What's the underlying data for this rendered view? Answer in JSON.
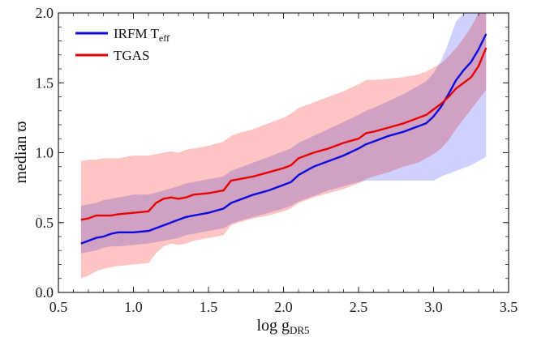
{
  "chart_data": {
    "type": "line",
    "title": "",
    "xlabel": "log g",
    "xlabel_sub": "DR5",
    "ylabel": "median ϖ",
    "xlim": [
      0.5,
      3.5
    ],
    "ylim": [
      0.0,
      2.0
    ],
    "xticks": [
      0.5,
      1.0,
      1.5,
      2.0,
      2.5,
      3.0,
      3.5
    ],
    "xtick_labels": [
      "0.5",
      "1.0",
      "1.5",
      "2.0",
      "2.5",
      "3.0",
      "3.5"
    ],
    "yticks": [
      0.0,
      0.5,
      1.0,
      1.5,
      2.0
    ],
    "ytick_labels": [
      "0.0",
      "0.5",
      "1.0",
      "1.5",
      "2.0"
    ],
    "grid": false,
    "legend_position": "top-left",
    "series": [
      {
        "name": "IRFM T",
        "name_sub": "eff",
        "color": "#0a0adc",
        "band_color": "#c9c9ff",
        "x": [
          0.65,
          0.7,
          0.75,
          0.8,
          0.85,
          0.9,
          1.0,
          1.1,
          1.2,
          1.3,
          1.35,
          1.4,
          1.5,
          1.6,
          1.65,
          1.7,
          1.8,
          1.9,
          2.0,
          2.05,
          2.1,
          2.2,
          2.3,
          2.4,
          2.5,
          2.55,
          2.6,
          2.7,
          2.8,
          2.9,
          2.95,
          3.0,
          3.05,
          3.1,
          3.15,
          3.2,
          3.25,
          3.3,
          3.35
        ],
        "values": [
          0.35,
          0.37,
          0.39,
          0.4,
          0.42,
          0.43,
          0.43,
          0.44,
          0.48,
          0.52,
          0.54,
          0.55,
          0.57,
          0.6,
          0.64,
          0.66,
          0.7,
          0.73,
          0.77,
          0.79,
          0.84,
          0.9,
          0.94,
          0.98,
          1.03,
          1.06,
          1.08,
          1.12,
          1.15,
          1.19,
          1.21,
          1.26,
          1.33,
          1.42,
          1.52,
          1.59,
          1.65,
          1.74,
          1.85
        ],
        "band_upper": [
          0.62,
          0.63,
          0.64,
          0.66,
          0.67,
          0.68,
          0.7,
          0.7,
          0.73,
          0.76,
          0.78,
          0.79,
          0.81,
          0.83,
          0.87,
          0.89,
          0.93,
          0.97,
          1.01,
          1.03,
          1.07,
          1.12,
          1.17,
          1.22,
          1.27,
          1.3,
          1.32,
          1.37,
          1.42,
          1.48,
          1.51,
          1.57,
          1.66,
          1.79,
          1.94,
          2.0,
          2.0,
          2.0,
          2.0
        ],
        "band_lower": [
          0.28,
          0.29,
          0.3,
          0.32,
          0.33,
          0.33,
          0.34,
          0.35,
          0.37,
          0.39,
          0.41,
          0.42,
          0.44,
          0.46,
          0.49,
          0.51,
          0.54,
          0.57,
          0.6,
          0.62,
          0.65,
          0.69,
          0.73,
          0.76,
          0.79,
          0.8,
          0.8,
          0.8,
          0.8,
          0.8,
          0.8,
          0.8,
          0.83,
          0.85,
          0.87,
          0.89,
          0.91,
          0.94,
          0.97
        ]
      },
      {
        "name": "TGAS",
        "color": "#e60000",
        "band_color": "#ffc4c4",
        "x": [
          0.65,
          0.7,
          0.75,
          0.8,
          0.85,
          0.9,
          1.0,
          1.1,
          1.15,
          1.2,
          1.25,
          1.3,
          1.35,
          1.4,
          1.5,
          1.6,
          1.65,
          1.7,
          1.8,
          1.9,
          2.0,
          2.05,
          2.1,
          2.2,
          2.3,
          2.4,
          2.5,
          2.55,
          2.6,
          2.7,
          2.8,
          2.9,
          2.95,
          3.0,
          3.05,
          3.1,
          3.15,
          3.2,
          3.25,
          3.3,
          3.35
        ],
        "values": [
          0.52,
          0.53,
          0.55,
          0.55,
          0.55,
          0.56,
          0.57,
          0.58,
          0.64,
          0.67,
          0.68,
          0.67,
          0.68,
          0.7,
          0.71,
          0.73,
          0.8,
          0.81,
          0.83,
          0.86,
          0.89,
          0.91,
          0.96,
          1.0,
          1.03,
          1.07,
          1.1,
          1.14,
          1.15,
          1.18,
          1.21,
          1.25,
          1.27,
          1.31,
          1.35,
          1.4,
          1.46,
          1.5,
          1.54,
          1.62,
          1.75
        ],
        "band_upper": [
          0.94,
          0.95,
          0.95,
          0.96,
          0.96,
          0.96,
          0.98,
          0.98,
          0.99,
          1.0,
          1.01,
          1.0,
          1.02,
          1.03,
          1.05,
          1.08,
          1.12,
          1.14,
          1.17,
          1.21,
          1.25,
          1.28,
          1.32,
          1.36,
          1.4,
          1.44,
          1.49,
          1.52,
          1.52,
          1.53,
          1.54,
          1.56,
          1.58,
          1.61,
          1.64,
          1.69,
          1.75,
          1.82,
          1.9,
          2.0,
          2.0
        ],
        "band_lower": [
          0.1,
          0.12,
          0.15,
          0.17,
          0.18,
          0.19,
          0.2,
          0.21,
          0.28,
          0.33,
          0.35,
          0.34,
          0.35,
          0.37,
          0.39,
          0.41,
          0.48,
          0.5,
          0.53,
          0.55,
          0.58,
          0.6,
          0.64,
          0.68,
          0.71,
          0.74,
          0.78,
          0.81,
          0.83,
          0.86,
          0.9,
          0.93,
          0.96,
          0.99,
          1.03,
          1.09,
          1.17,
          1.24,
          1.31,
          1.38,
          1.45
        ]
      }
    ]
  }
}
